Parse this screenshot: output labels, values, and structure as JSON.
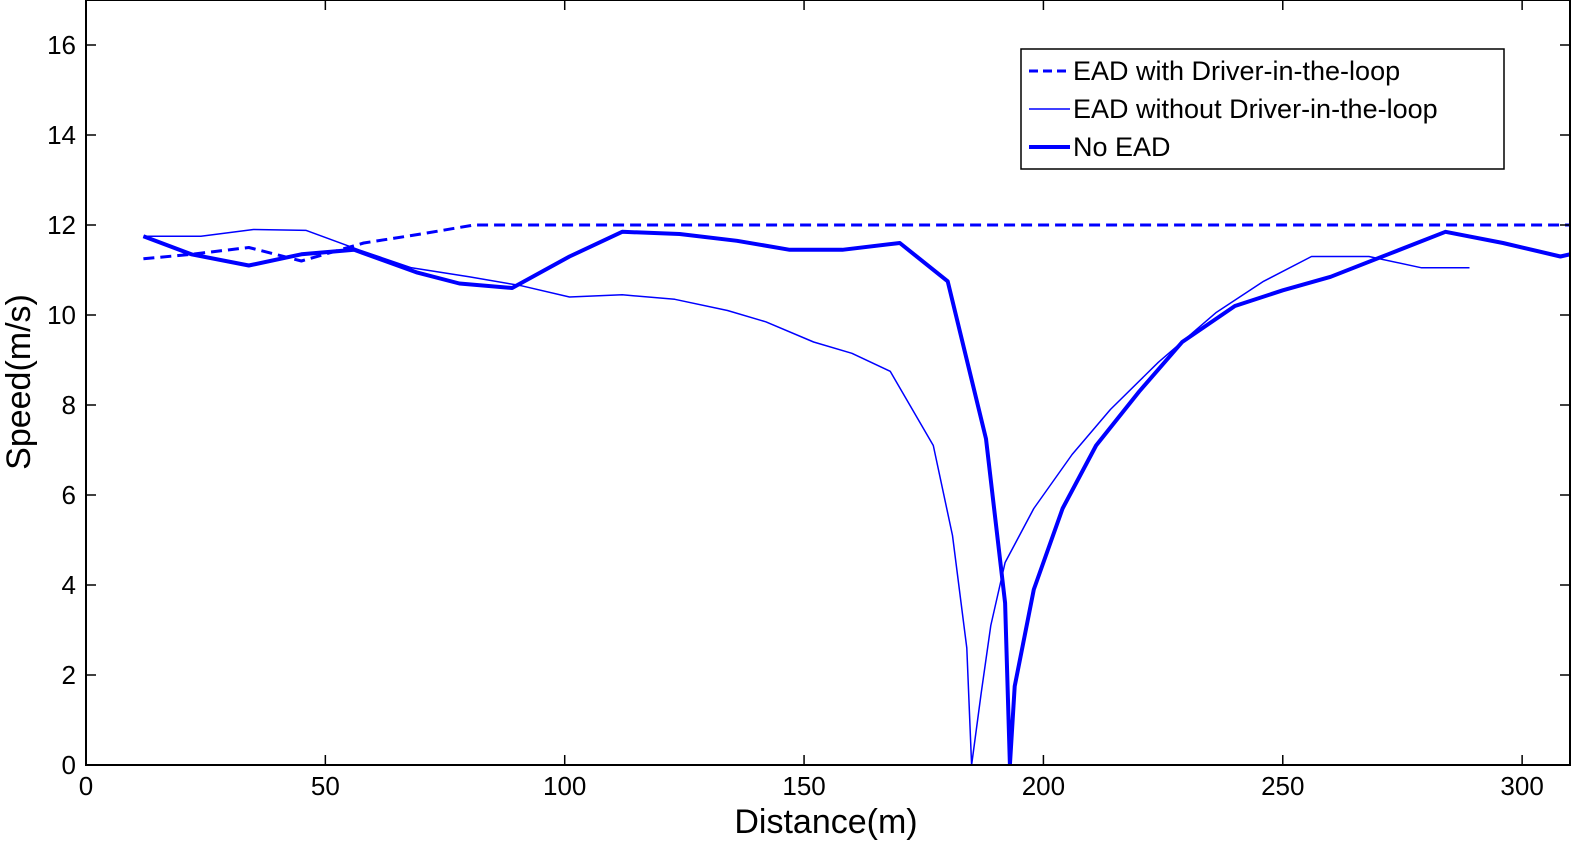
{
  "chart_data": {
    "type": "line",
    "title": "",
    "xlabel": "Distance(m)",
    "ylabel": "Speed(m/s)",
    "xlim": [
      0,
      310
    ],
    "ylim": [
      0,
      17
    ],
    "xticks": [
      0,
      50,
      100,
      150,
      200,
      250,
      300
    ],
    "yticks": [
      0,
      2,
      4,
      6,
      8,
      10,
      12,
      14,
      16
    ],
    "grid": false,
    "legend_position": "top-right",
    "line_color": "#0000ff",
    "series": [
      {
        "name": "EAD with Driver-in-the-loop",
        "style": "dashed",
        "x": [
          12,
          22,
          34,
          45,
          58,
          70,
          81,
          100,
          150,
          200,
          250,
          300,
          310
        ],
        "y": [
          11.25,
          11.35,
          11.5,
          11.2,
          11.6,
          11.8,
          12.0,
          12.0,
          12.0,
          12.0,
          12.0,
          12.0,
          12.0
        ]
      },
      {
        "name": "EAD without Driver-in-the-loop",
        "style": "thin",
        "x": [
          12,
          24,
          35,
          46,
          57,
          68,
          80,
          91,
          101,
          112,
          123,
          134,
          142,
          152,
          160,
          168,
          177,
          181,
          184,
          185,
          187,
          189,
          192,
          198,
          206,
          214,
          224,
          236,
          246,
          256,
          268,
          279,
          289
        ],
        "y": [
          11.75,
          11.75,
          11.9,
          11.88,
          11.45,
          11.05,
          10.85,
          10.65,
          10.4,
          10.45,
          10.35,
          10.1,
          9.85,
          9.4,
          9.15,
          8.75,
          7.1,
          5.1,
          2.6,
          0.0,
          1.6,
          3.1,
          4.5,
          5.7,
          6.9,
          7.9,
          8.95,
          10.05,
          10.75,
          11.3,
          11.3,
          11.05,
          11.05
        ]
      },
      {
        "name": "No EAD",
        "style": "thick",
        "x": [
          12,
          22,
          34,
          45,
          56,
          69,
          78,
          89,
          101,
          112,
          124,
          136,
          147,
          158,
          170,
          180,
          188,
          192,
          193,
          194,
          198,
          204,
          211,
          220,
          229,
          240,
          250,
          260,
          272,
          284,
          296,
          308,
          310
        ],
        "y": [
          11.75,
          11.35,
          11.1,
          11.35,
          11.45,
          10.95,
          10.7,
          10.6,
          11.3,
          11.85,
          11.8,
          11.65,
          11.45,
          11.45,
          11.6,
          10.75,
          7.25,
          3.6,
          0.0,
          1.75,
          3.9,
          5.7,
          7.1,
          8.3,
          9.4,
          10.2,
          10.55,
          10.85,
          11.35,
          11.85,
          11.6,
          11.3,
          11.35
        ]
      }
    ]
  }
}
